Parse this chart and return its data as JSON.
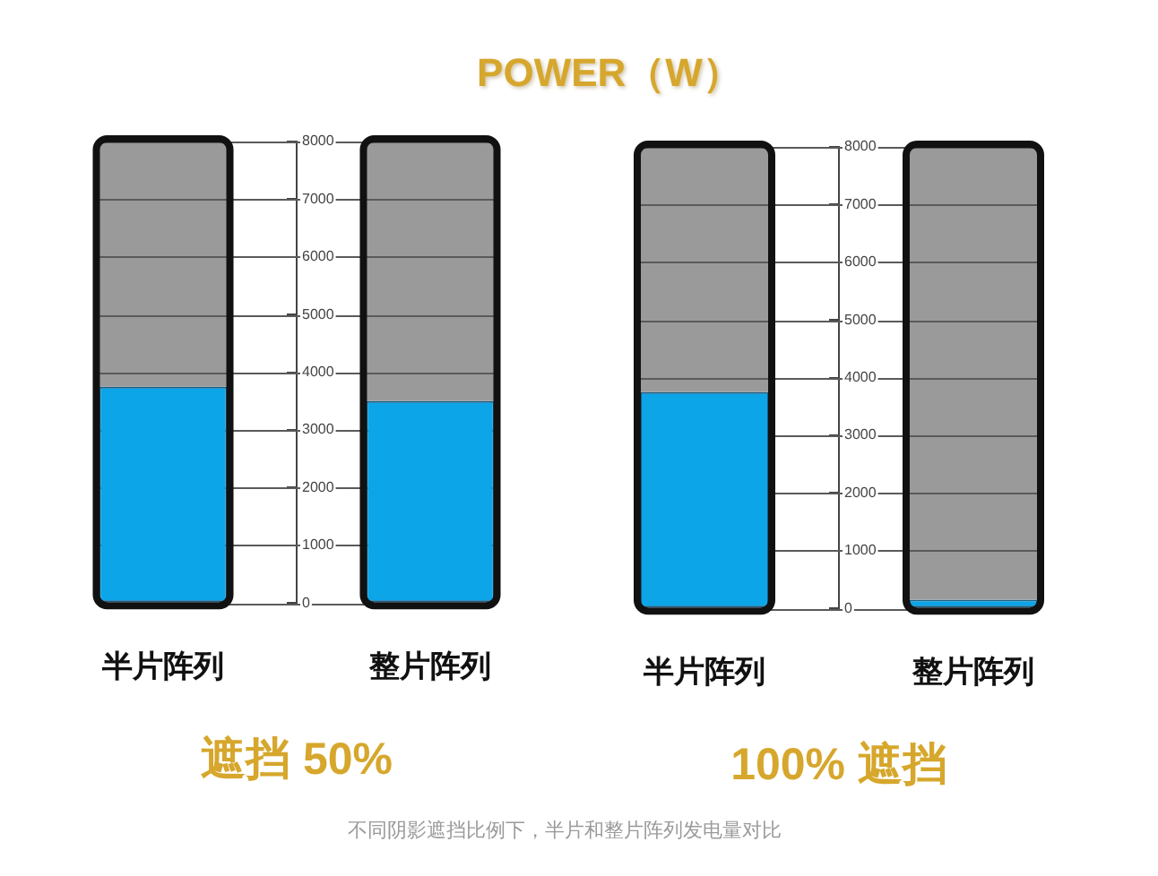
{
  "chart_data": [
    {
      "type": "bar",
      "title": "POWER（W）",
      "categories": [
        "半片阵列",
        "整片阵列"
      ],
      "xlabel": "遮挡 50%",
      "stacked": true,
      "series": [
        {
          "color": "#0ba5e8",
          "values": [
            3750,
            3500
          ]
        },
        {
          "color": "#9a9a9a",
          "values": [
            4250,
            4500
          ]
        }
      ],
      "ylim": [
        0,
        8000
      ],
      "yticks": [
        0,
        1000,
        2000,
        3000,
        4000,
        5000,
        6000,
        7000,
        8000
      ],
      "grid": "y"
    },
    {
      "type": "bar",
      "categories": [
        "半片阵列",
        "整片阵列"
      ],
      "xlabel": "100% 遮挡",
      "stacked": true,
      "series": [
        {
          "color": "#0ba5e8",
          "values": [
            3750,
            150
          ]
        },
        {
          "color": "#9a9a9a",
          "values": [
            4250,
            7850
          ]
        }
      ],
      "ylim": [
        0,
        8000
      ],
      "yticks": [
        0,
        1000,
        2000,
        3000,
        4000,
        5000,
        6000,
        7000,
        8000
      ],
      "grid": "y",
      "annotations": [
        "不同阴影遮挡比例下，半片和整片阵列发电量对比"
      ]
    }
  ]
}
